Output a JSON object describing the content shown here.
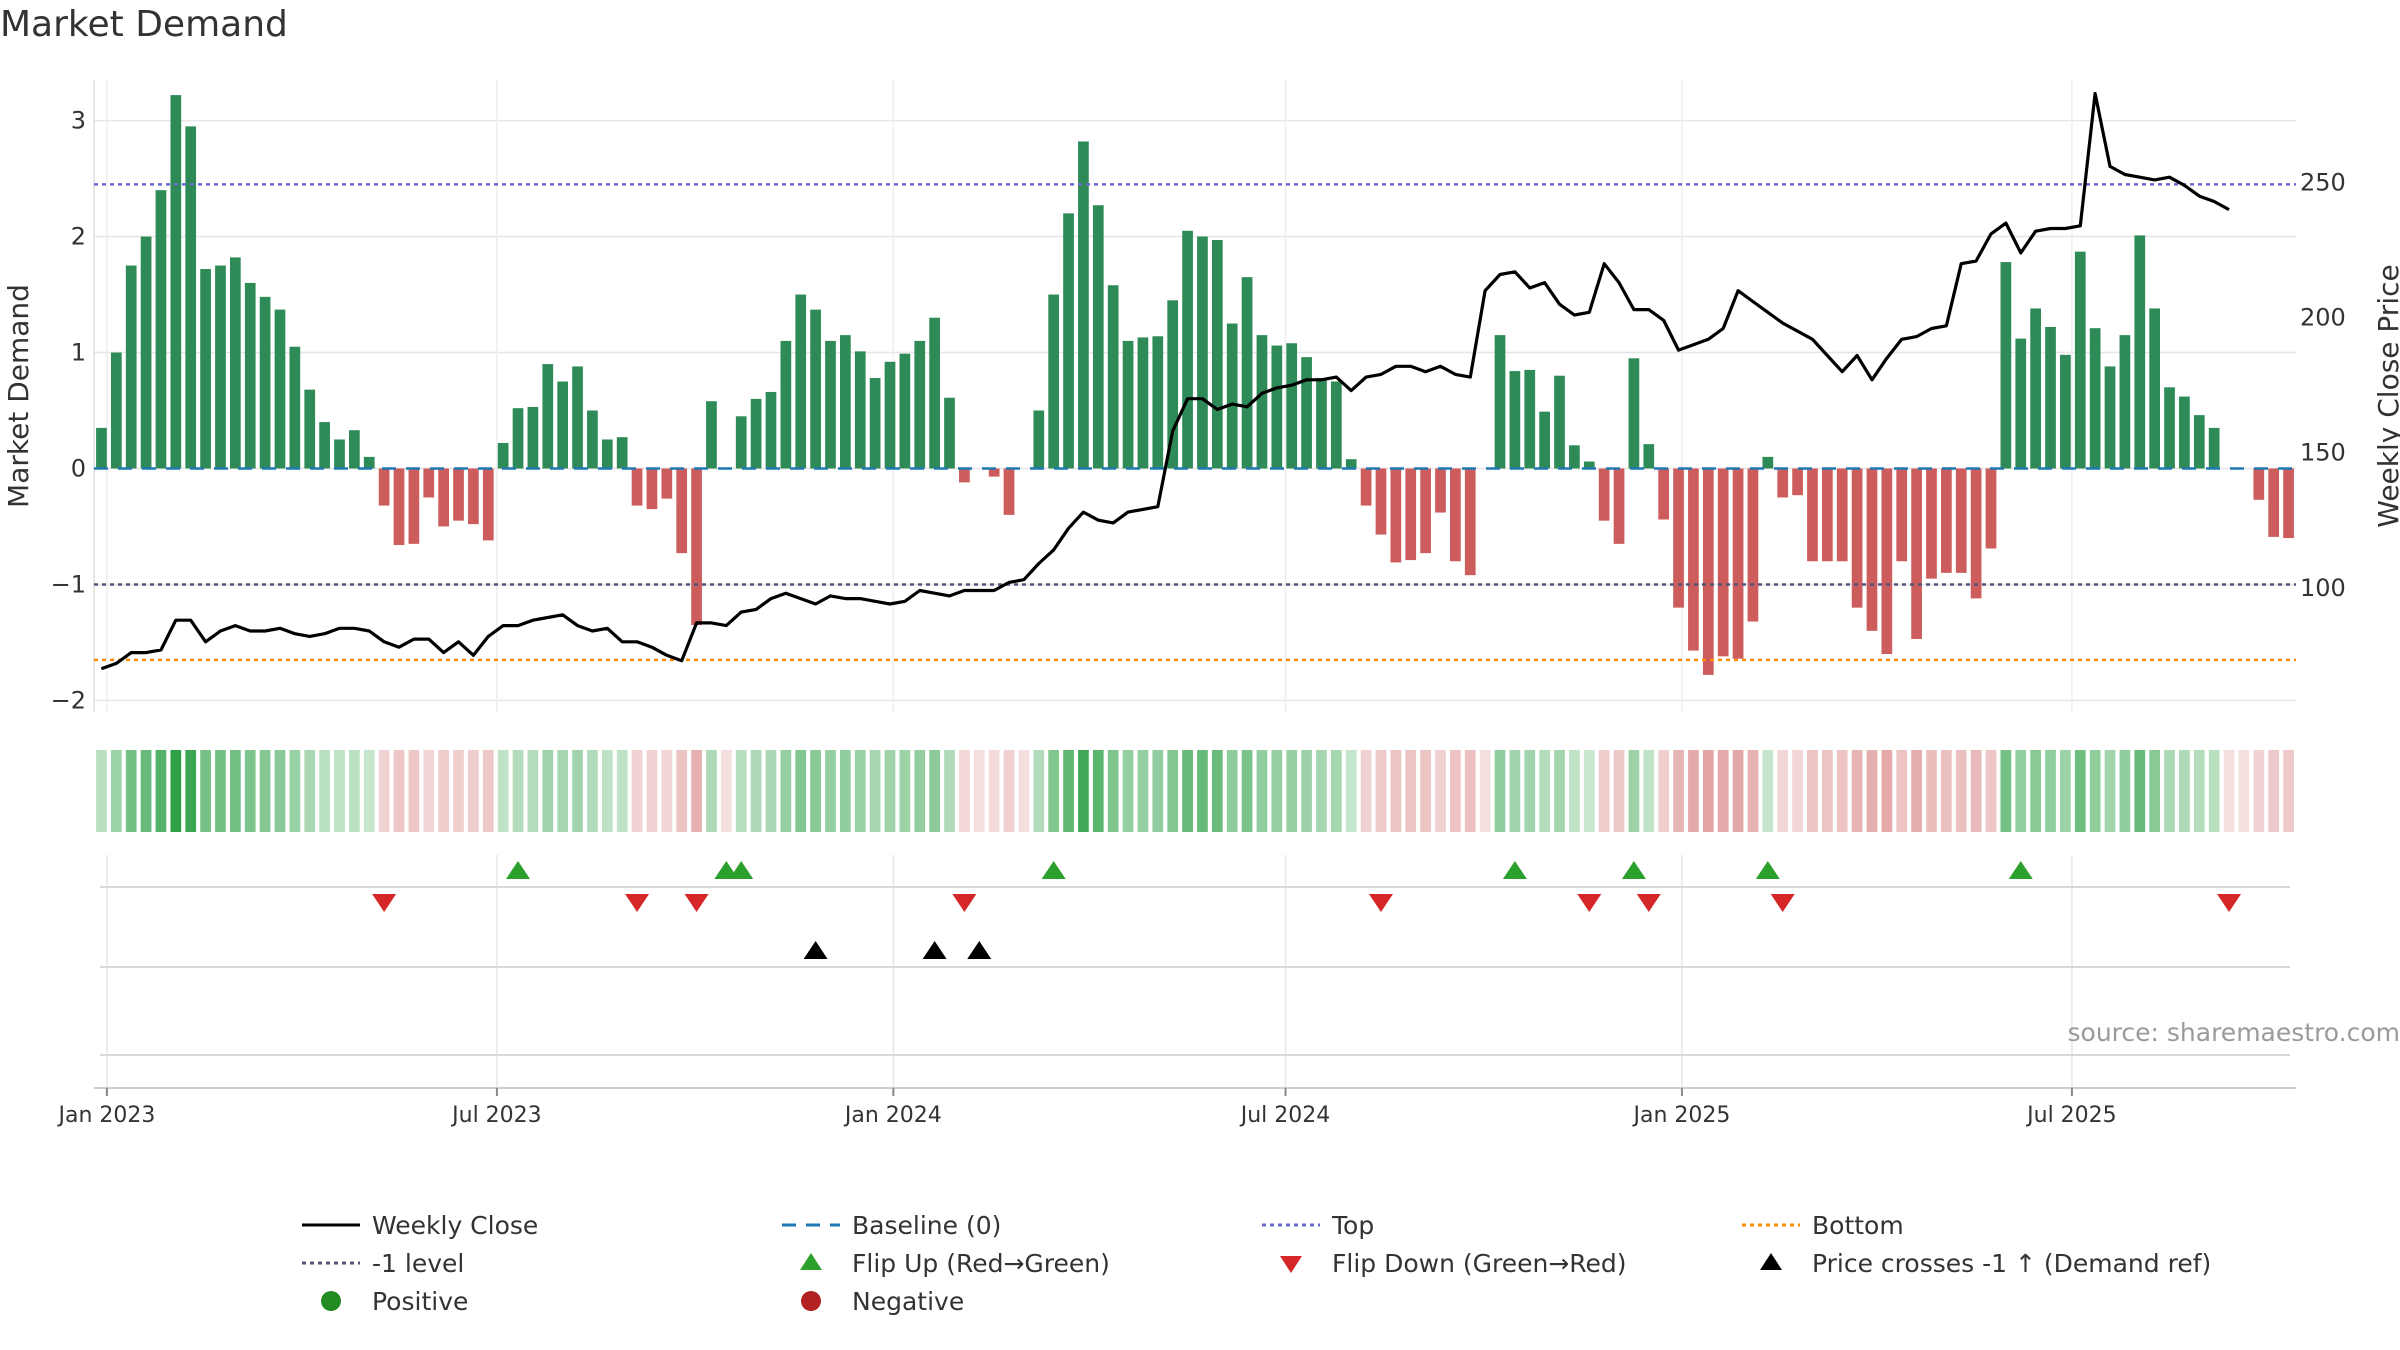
{
  "chart_data": {
    "type": "bar+line",
    "title": "Market Demand",
    "ylabel_left": "Market Demand",
    "ylabel_right": "Weekly Close Price",
    "ylim_left": [
      -2.1,
      3.35
    ],
    "ylim_right": [
      54,
      288
    ],
    "yticks_left": [
      -2,
      -1,
      0,
      1,
      2,
      3
    ],
    "yticks_right": [
      100,
      150,
      200,
      250
    ],
    "levels": {
      "top": 2.45,
      "bottom": -1.65,
      "minus1": -1,
      "baseline": 0
    },
    "x_start": "2022-12-26",
    "x_end": "2025-10-13",
    "x_ticks": [
      {
        "date": "2023-01-01",
        "label": "Jan 2023"
      },
      {
        "date": "2023-07-01",
        "label": "Jul 2023"
      },
      {
        "date": "2024-01-01",
        "label": "Jan 2024"
      },
      {
        "date": "2024-07-01",
        "label": "Jul 2024"
      },
      {
        "date": "2025-01-01",
        "label": "Jan 2025"
      },
      {
        "date": "2025-07-01",
        "label": "Jul 2025"
      }
    ],
    "demand": [
      0.35,
      1.0,
      1.75,
      2.0,
      2.4,
      3.22,
      2.95,
      1.72,
      1.75,
      1.82,
      1.6,
      1.48,
      1.37,
      1.05,
      0.68,
      0.4,
      0.25,
      0.33,
      0.1,
      -0.32,
      -0.66,
      -0.65,
      -0.25,
      -0.5,
      -0.45,
      -0.48,
      -0.62,
      0.22,
      0.52,
      0.53,
      0.9,
      0.75,
      0.88,
      0.5,
      0.25,
      0.27,
      -0.32,
      -0.35,
      -0.26,
      -0.73,
      -1.35,
      0.58,
      0.0,
      0.45,
      0.6,
      0.66,
      1.1,
      1.5,
      1.37,
      1.1,
      1.15,
      1.01,
      0.78,
      0.92,
      0.99,
      1.1,
      1.3,
      0.61,
      -0.12,
      0.0,
      -0.07,
      -0.4,
      0.0,
      0.5,
      1.5,
      2.2,
      2.82,
      2.27,
      1.58,
      1.1,
      1.13,
      1.14,
      1.45,
      2.05,
      2.0,
      1.97,
      1.25,
      1.65,
      1.15,
      1.06,
      1.08,
      0.96,
      0.78,
      0.75,
      0.08,
      -0.32,
      -0.57,
      -0.81,
      -0.79,
      -0.73,
      -0.38,
      -0.8,
      -0.92,
      0.0,
      1.15,
      0.84,
      0.85,
      0.49,
      0.8,
      0.2,
      0.06,
      -0.45,
      -0.65,
      0.95,
      0.21,
      -0.44,
      -1.2,
      -1.57,
      -1.78,
      -1.62,
      -1.64,
      -1.32,
      0.1,
      -0.25,
      -0.23,
      -0.8,
      -0.8,
      -0.8,
      -1.2,
      -1.4,
      -1.6,
      -0.8,
      -1.47,
      -0.95,
      -0.9,
      -0.9,
      -1.12,
      -0.69,
      1.78,
      1.12,
      1.38,
      1.22,
      0.98,
      1.87,
      1.21,
      0.88,
      1.15,
      2.01,
      1.38,
      0.7,
      0.62,
      0.46,
      0.35,
      0.0,
      0.0,
      -0.27,
      -0.59,
      -0.6
    ],
    "weekly_close": [
      70,
      72,
      76,
      76,
      77,
      88,
      88,
      80,
      84,
      86,
      84,
      84,
      85,
      83,
      82,
      83,
      85,
      85,
      84,
      80,
      78,
      81,
      81,
      76,
      80,
      75,
      82,
      86,
      86,
      88,
      89,
      90,
      86,
      84,
      85,
      80,
      80,
      78,
      75,
      73,
      87,
      87,
      86,
      91,
      92,
      96,
      98,
      96,
      94,
      97,
      96,
      96,
      95,
      94,
      95,
      99,
      98,
      97,
      99,
      99,
      99,
      102,
      103,
      109,
      114,
      122,
      128,
      125,
      124,
      128,
      129,
      130,
      158,
      170,
      170,
      166,
      168,
      167,
      172,
      174,
      175,
      177,
      177,
      178,
      173,
      178,
      179,
      182,
      182,
      180,
      182,
      179,
      178,
      210,
      216,
      217,
      211,
      213,
      205,
      201,
      202,
      220,
      213,
      203,
      203,
      199,
      188,
      190,
      192,
      196,
      210,
      206,
      202,
      198,
      195,
      192,
      186,
      180,
      186,
      177,
      185,
      192,
      193,
      196,
      197,
      220,
      221,
      231,
      235,
      224,
      232,
      233,
      233,
      234,
      283,
      256,
      253,
      252,
      251,
      252,
      249,
      245,
      243,
      240
    ],
    "flip_up_indices": [
      28,
      42,
      43,
      64,
      95,
      103,
      112,
      129
    ],
    "flip_down_indices": [
      19,
      36,
      40,
      58,
      86,
      100,
      104,
      113,
      143
    ],
    "price_cross_indices": [
      48,
      56,
      59
    ],
    "source": "source: sharemaestro.com",
    "legend": [
      {
        "key": "weekly_close",
        "label": "Weekly Close"
      },
      {
        "key": "baseline",
        "label": "Baseline (0)"
      },
      {
        "key": "top",
        "label": "Top"
      },
      {
        "key": "bottom",
        "label": "Bottom"
      },
      {
        "key": "minus1",
        "label": "-1 level"
      },
      {
        "key": "flip_up",
        "label": "Flip Up (Red→Green)"
      },
      {
        "key": "flip_down",
        "label": "Flip Down (Green→Red)"
      },
      {
        "key": "price_cross",
        "label": "Price crosses -1 ↑ (Demand ref)"
      },
      {
        "key": "positive",
        "label": "Positive"
      },
      {
        "key": "negative",
        "label": "Negative"
      }
    ],
    "colors": {
      "positive": "#2e8b57",
      "negative": "#cd5c5c",
      "close": "#000000",
      "baseline": "#1f77b4",
      "top": "#6a6acd",
      "bottom": "#ff8c00",
      "minus1": "#555577",
      "flip_up": "#2ca02c",
      "flip_down": "#d62728",
      "price_cross": "#000000",
      "positive_dot": "#228b22",
      "negative_dot": "#b22222"
    }
  }
}
